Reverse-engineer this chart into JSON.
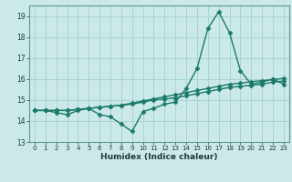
{
  "xlabel": "Humidex (Indice chaleur)",
  "xlim": [
    -0.5,
    23.5
  ],
  "ylim": [
    13,
    19.5
  ],
  "yticks": [
    13,
    14,
    15,
    16,
    17,
    18,
    19
  ],
  "xticks": [
    0,
    1,
    2,
    3,
    4,
    5,
    6,
    7,
    8,
    9,
    10,
    11,
    12,
    13,
    14,
    15,
    16,
    17,
    18,
    19,
    20,
    21,
    22,
    23
  ],
  "bg_color": "#cce9e9",
  "grid_color": "#a8d4d4",
  "line_color": "#1a7a6a",
  "line1": [
    14.5,
    14.5,
    14.4,
    14.3,
    14.5,
    14.6,
    14.3,
    14.2,
    13.85,
    13.5,
    14.45,
    14.6,
    14.8,
    14.9,
    15.55,
    16.5,
    18.4,
    19.2,
    18.2,
    16.4,
    15.75,
    15.85,
    16.0,
    15.75
  ],
  "line2": [
    14.5,
    14.5,
    14.5,
    14.5,
    14.55,
    14.6,
    14.65,
    14.7,
    14.75,
    14.8,
    14.9,
    15.0,
    15.05,
    15.1,
    15.2,
    15.3,
    15.4,
    15.5,
    15.6,
    15.65,
    15.7,
    15.75,
    15.85,
    15.9
  ],
  "line3": [
    14.5,
    14.5,
    14.5,
    14.5,
    14.55,
    14.6,
    14.65,
    14.7,
    14.75,
    14.85,
    14.95,
    15.05,
    15.15,
    15.25,
    15.35,
    15.45,
    15.55,
    15.65,
    15.75,
    15.8,
    15.87,
    15.92,
    15.97,
    16.03
  ],
  "marker": "D",
  "markersize": 2.5,
  "linewidth": 1.0
}
